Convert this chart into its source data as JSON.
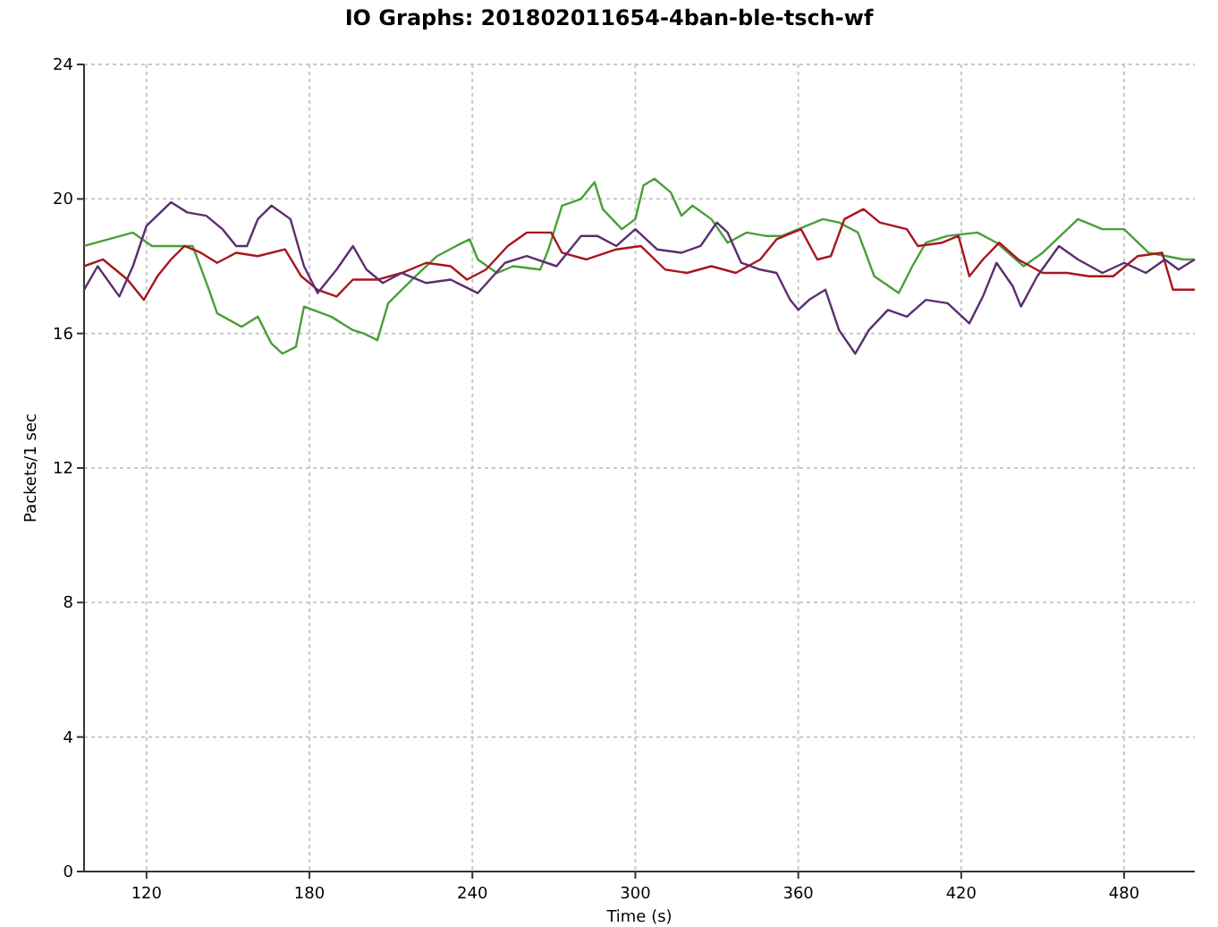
{
  "chart_data": {
    "type": "line",
    "title": "IO Graphs: 201802011654-4ban-ble-tsch-wf",
    "xlabel": "Time (s)",
    "ylabel": "Packets/1 sec",
    "xlim": [
      97,
      506
    ],
    "xticks": [
      120,
      180,
      240,
      300,
      360,
      420,
      480
    ],
    "ylim": [
      0,
      24
    ],
    "yticks": [
      0,
      4,
      8,
      12,
      16,
      20,
      24
    ],
    "grid": true,
    "marker": "none",
    "line_style": "solid",
    "series": [
      {
        "color": "#4a9e3a",
        "x": [
          97,
          115,
          122,
          137,
          143,
          146,
          155,
          161,
          166,
          170,
          175,
          178,
          188,
          196,
          200,
          205,
          209,
          219,
          227,
          234,
          239,
          242,
          249,
          255,
          265,
          268,
          273,
          280,
          285,
          288,
          295,
          300,
          303,
          307,
          313,
          317,
          321,
          328,
          334,
          341,
          348,
          354,
          363,
          369,
          375,
          382,
          388,
          397,
          402,
          407,
          415,
          426,
          433,
          443,
          450,
          463,
          472,
          480,
          489,
          502,
          506
        ],
        "values": [
          18.6,
          19.0,
          18.6,
          18.6,
          17.3,
          16.6,
          16.2,
          16.5,
          15.7,
          15.4,
          15.6,
          16.8,
          16.5,
          16.1,
          16.0,
          15.8,
          16.9,
          17.7,
          18.3,
          18.6,
          18.8,
          18.2,
          17.8,
          18.0,
          17.9,
          18.5,
          19.8,
          20.0,
          20.5,
          19.7,
          19.1,
          19.4,
          20.4,
          20.6,
          20.2,
          19.5,
          19.8,
          19.4,
          18.7,
          19.0,
          18.9,
          18.9,
          19.2,
          19.4,
          19.3,
          19.0,
          17.7,
          17.2,
          18.0,
          18.7,
          18.9,
          19.0,
          18.7,
          18.0,
          18.4,
          19.4,
          19.1,
          19.1,
          18.4,
          18.2,
          18.2
        ]
      },
      {
        "color": "#a8161e",
        "x": [
          97,
          104,
          113,
          119,
          124,
          129,
          134,
          140,
          146,
          153,
          161,
          171,
          177,
          183,
          190,
          196,
          205,
          214,
          223,
          232,
          238,
          245,
          253,
          260,
          269,
          273,
          282,
          293,
          302,
          311,
          319,
          328,
          337,
          346,
          352,
          361,
          367,
          372,
          377,
          384,
          390,
          400,
          404,
          413,
          419,
          423,
          428,
          434,
          441,
          450,
          459,
          467,
          476,
          485,
          494,
          498,
          506
        ],
        "values": [
          18.0,
          18.2,
          17.6,
          17.0,
          17.7,
          18.2,
          18.6,
          18.4,
          18.1,
          18.4,
          18.3,
          18.5,
          17.7,
          17.3,
          17.1,
          17.6,
          17.6,
          17.8,
          18.1,
          18.0,
          17.6,
          17.9,
          18.6,
          19.0,
          19.0,
          18.4,
          18.2,
          18.5,
          18.6,
          17.9,
          17.8,
          18.0,
          17.8,
          18.2,
          18.8,
          19.1,
          18.2,
          18.3,
          19.4,
          19.7,
          19.3,
          19.1,
          18.6,
          18.7,
          18.9,
          17.7,
          18.2,
          18.7,
          18.2,
          17.8,
          17.8,
          17.7,
          17.7,
          18.3,
          18.4,
          17.3,
          17.3
        ]
      },
      {
        "color": "#5b2d70",
        "x": [
          97,
          102,
          110,
          115,
          120,
          129,
          135,
          142,
          148,
          153,
          157,
          161,
          166,
          173,
          178,
          183,
          190,
          196,
          201,
          207,
          214,
          223,
          232,
          242,
          252,
          260,
          271,
          280,
          286,
          293,
          300,
          308,
          317,
          324,
          330,
          334,
          339,
          346,
          352,
          357,
          360,
          364,
          370,
          375,
          381,
          386,
          393,
          400,
          407,
          415,
          423,
          428,
          433,
          439,
          442,
          448,
          456,
          463,
          472,
          480,
          488,
          495,
          500,
          506
        ],
        "values": [
          17.3,
          18.0,
          17.1,
          18.0,
          19.2,
          19.9,
          19.6,
          19.5,
          19.1,
          18.6,
          18.6,
          19.4,
          19.8,
          19.4,
          18.0,
          17.2,
          17.9,
          18.6,
          17.9,
          17.5,
          17.8,
          17.5,
          17.6,
          17.2,
          18.1,
          18.3,
          18.0,
          18.9,
          18.9,
          18.6,
          19.1,
          18.5,
          18.4,
          18.6,
          19.3,
          19.0,
          18.1,
          17.9,
          17.8,
          17.0,
          16.7,
          17.0,
          17.3,
          16.1,
          15.4,
          16.1,
          16.7,
          16.5,
          17.0,
          16.9,
          16.3,
          17.1,
          18.1,
          17.4,
          16.8,
          17.7,
          18.6,
          18.2,
          17.8,
          18.1,
          17.8,
          18.2,
          17.9,
          18.2
        ]
      }
    ]
  }
}
